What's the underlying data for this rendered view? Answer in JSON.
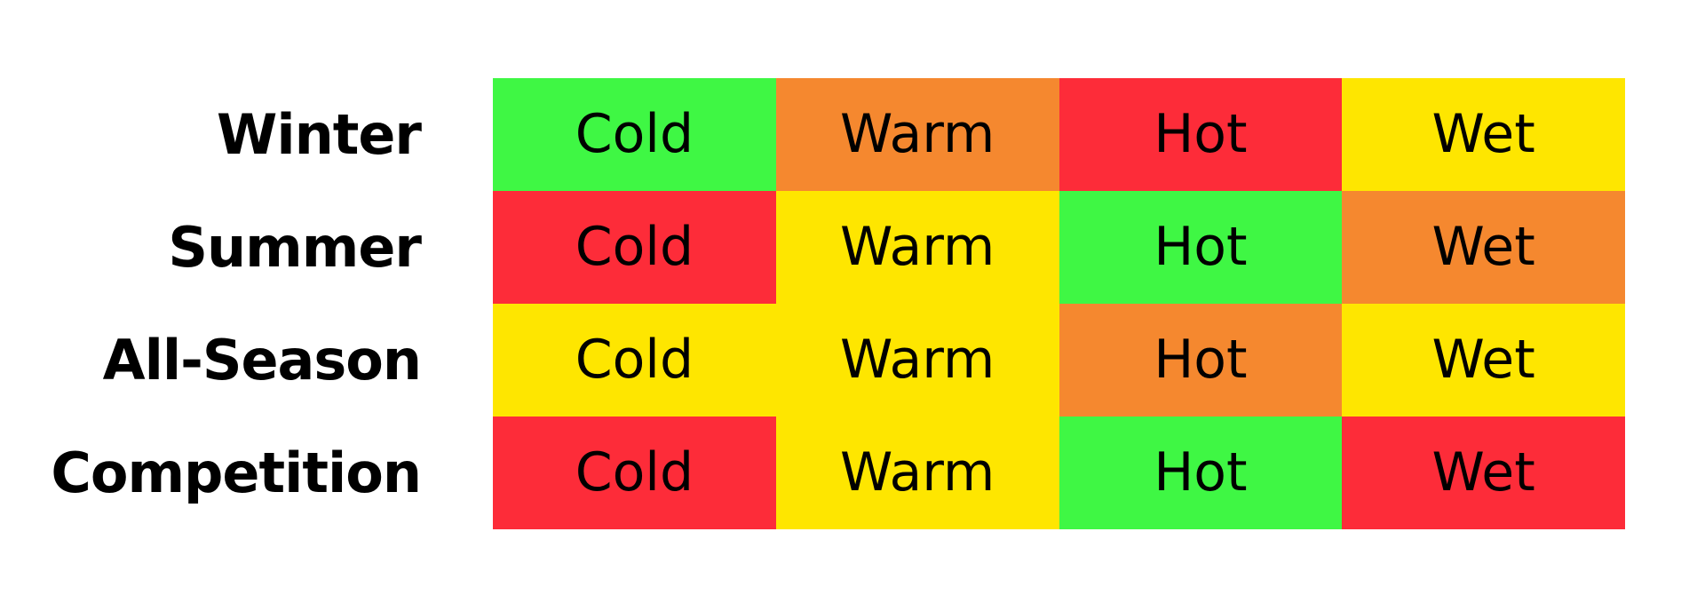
{
  "table": {
    "rows": [
      {
        "label": "Winter",
        "cells": [
          {
            "text": "Cold",
            "color": "#3ff744"
          },
          {
            "text": "Warm",
            "color": "#f5882f"
          },
          {
            "text": "Hot",
            "color": "#fd2c39"
          },
          {
            "text": "Wet",
            "color": "#fee600"
          }
        ]
      },
      {
        "label": "Summer",
        "cells": [
          {
            "text": "Cold",
            "color": "#fd2c39"
          },
          {
            "text": "Warm",
            "color": "#fee600"
          },
          {
            "text": "Hot",
            "color": "#3ff744"
          },
          {
            "text": "Wet",
            "color": "#f5882f"
          }
        ]
      },
      {
        "label": "All-Season",
        "cells": [
          {
            "text": "Cold",
            "color": "#fee600"
          },
          {
            "text": "Warm",
            "color": "#fee600"
          },
          {
            "text": "Hot",
            "color": "#f5882f"
          },
          {
            "text": "Wet",
            "color": "#fee600"
          }
        ]
      },
      {
        "label": "Competition",
        "cells": [
          {
            "text": "Cold",
            "color": "#fd2c39"
          },
          {
            "text": "Warm",
            "color": "#fee600"
          },
          {
            "text": "Hot",
            "color": "#3ff744"
          },
          {
            "text": "Wet",
            "color": "#fd2c39"
          }
        ]
      }
    ]
  }
}
